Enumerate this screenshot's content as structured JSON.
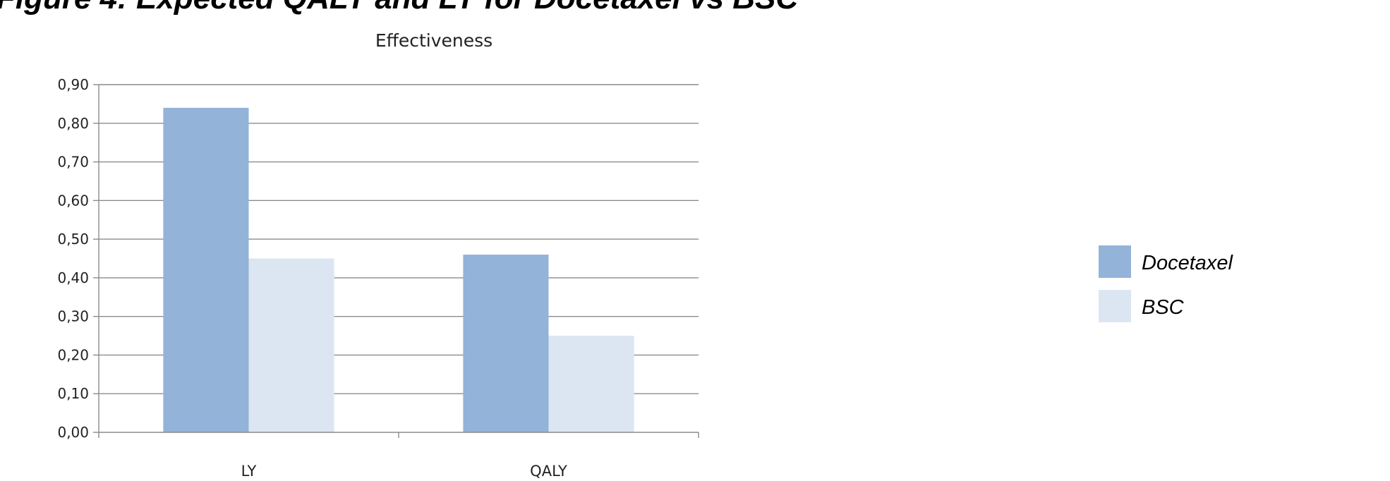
{
  "figure_title": "Figure 4: Expected QALY and LY for Docetaxel vs BSC",
  "chart_data": {
    "type": "bar",
    "title": "Effectiveness",
    "xlabel": "",
    "ylabel": "",
    "categories": [
      "LY",
      "QALY"
    ],
    "series": [
      {
        "name": "Docetaxel",
        "values": [
          0.84,
          0.46
        ],
        "color": "#93B3D9"
      },
      {
        "name": "BSC",
        "values": [
          0.45,
          0.25
        ],
        "color": "#DCE6F2"
      }
    ],
    "ylim": [
      0,
      0.9
    ],
    "y_ticks": [
      "0,00",
      "0,10",
      "0,20",
      "0,30",
      "0,40",
      "0,50",
      "0,60",
      "0,70",
      "0,80",
      "0,90"
    ],
    "grid": true,
    "legend_position": "right"
  }
}
